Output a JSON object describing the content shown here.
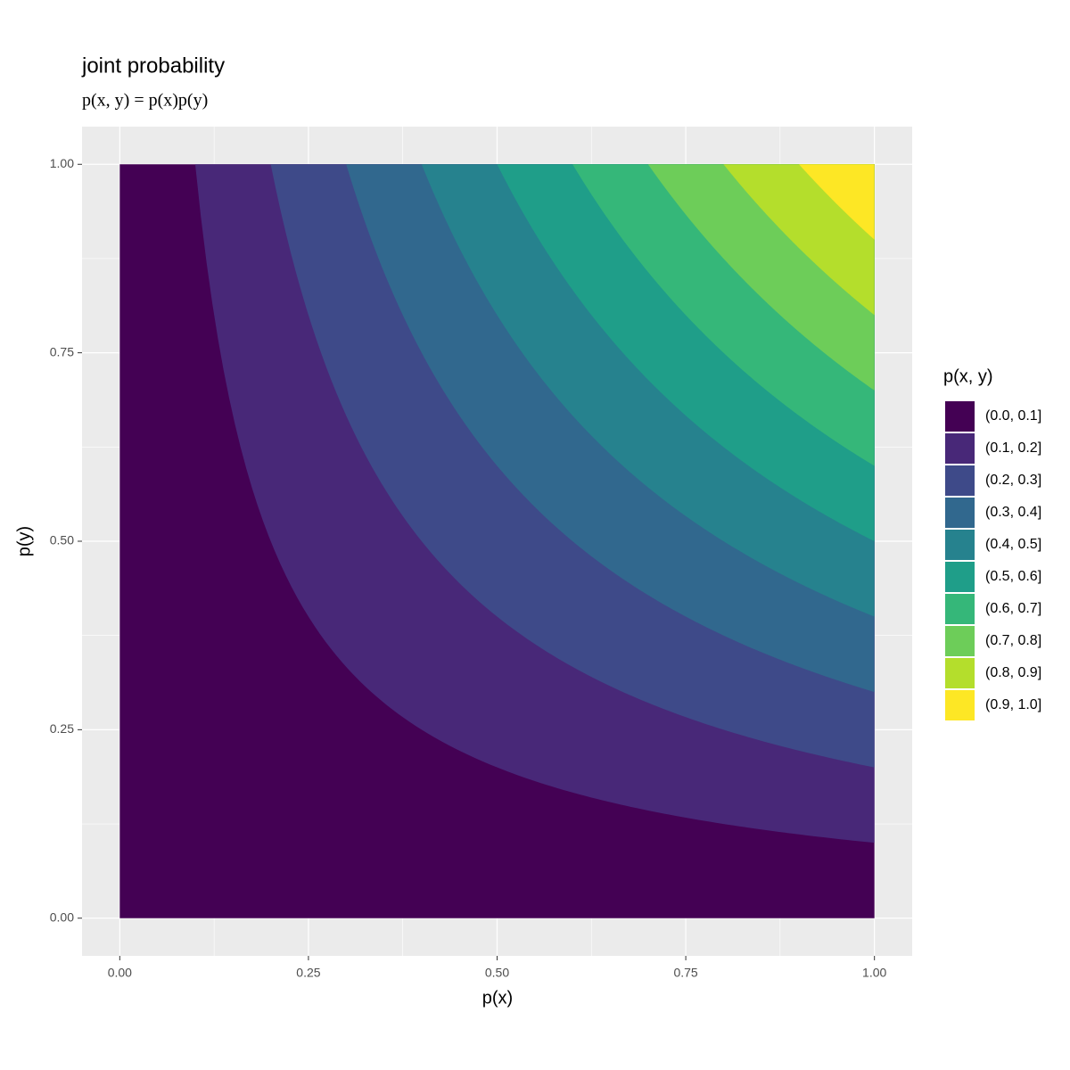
{
  "chart_data": {
    "type": "filled_contour",
    "title": "joint probability",
    "subtitle": "p(x, y) = p(x)p(y)",
    "x_label": "p(x)",
    "y_label": "p(y)",
    "legend_title": "p(x, y)",
    "legend_position": "right",
    "grid": true,
    "xlim": [
      -0.05,
      1.05
    ],
    "ylim": [
      -0.05,
      1.05
    ],
    "xticks": [
      {
        "value": 0,
        "label": "0.00"
      },
      {
        "value": 0.25,
        "label": "0.25"
      },
      {
        "value": 0.5,
        "label": "0.50"
      },
      {
        "value": 0.75,
        "label": "0.75"
      },
      {
        "value": 1,
        "label": "1.00"
      }
    ],
    "yticks": [
      {
        "value": 0,
        "label": "0.00"
      },
      {
        "value": 0.25,
        "label": "0.25"
      },
      {
        "value": 0.5,
        "label": "0.50"
      },
      {
        "value": 0.75,
        "label": "0.75"
      },
      {
        "value": 1,
        "label": "1.00"
      }
    ],
    "levels": [
      0,
      0.1,
      0.2,
      0.3,
      0.4,
      0.5,
      0.6,
      0.7,
      0.8,
      0.9,
      1.0
    ],
    "series": [
      {
        "name": "(0.0, 0.1]",
        "color": "#440154"
      },
      {
        "name": "(0.1, 0.2]",
        "color": "#482878"
      },
      {
        "name": "(0.2, 0.3]",
        "color": "#3E4A89"
      },
      {
        "name": "(0.3, 0.4]",
        "color": "#31688E"
      },
      {
        "name": "(0.4, 0.5]",
        "color": "#26828E"
      },
      {
        "name": "(0.5, 0.6]",
        "color": "#1F9E89"
      },
      {
        "name": "(0.6, 0.7]",
        "color": "#35B779"
      },
      {
        "name": "(0.7, 0.8]",
        "color": "#6DCD59"
      },
      {
        "name": "(0.8, 0.9]",
        "color": "#B4DE2C"
      },
      {
        "name": "(0.9, 1.0]",
        "color": "#FDE725"
      }
    ]
  }
}
